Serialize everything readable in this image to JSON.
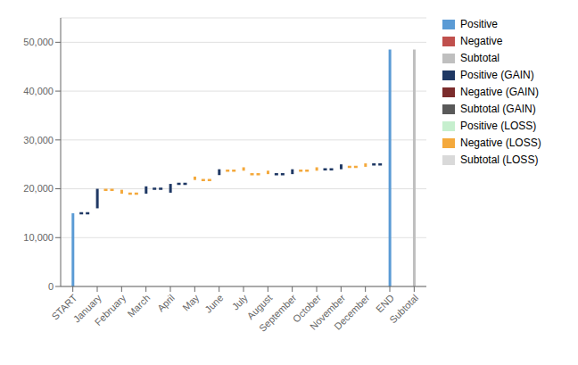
{
  "chart_data": {
    "type": "bar",
    "categories": [
      "START",
      "January",
      "February",
      "March",
      "April",
      "May",
      "June",
      "July",
      "August",
      "September",
      "October",
      "November",
      "December",
      "END",
      "Subtotal"
    ],
    "series": [
      {
        "name": "Positive",
        "color": "#5b9bd5",
        "values": [
          [
            0,
            15000
          ],
          null,
          null,
          null,
          null,
          null,
          null,
          null,
          null,
          null,
          null,
          null,
          null,
          [
            0,
            48500
          ],
          null
        ]
      },
      {
        "name": "Negative",
        "color": "#c0504d",
        "values": [
          null,
          null,
          null,
          null,
          null,
          null,
          null,
          null,
          null,
          null,
          null,
          null,
          null,
          null,
          null
        ]
      },
      {
        "name": "Subtotal",
        "color": "#bfbfbf",
        "values": [
          null,
          null,
          null,
          null,
          null,
          null,
          null,
          null,
          null,
          null,
          null,
          null,
          null,
          null,
          [
            0,
            48500
          ]
        ]
      },
      {
        "name": "Positive (GAIN)",
        "color": "#1f3864",
        "values": [
          null,
          [
            16000,
            20000
          ],
          null,
          [
            19000,
            20500
          ],
          [
            19200,
            21000
          ],
          null,
          [
            22800,
            24000
          ],
          null,
          null,
          [
            23000,
            24000
          ],
          null,
          [
            24000,
            25000
          ],
          null,
          null,
          null
        ]
      },
      {
        "name": "Negative (GAIN)",
        "color": "#7b2c2c",
        "values": [
          null,
          null,
          null,
          null,
          null,
          null,
          null,
          null,
          null,
          null,
          null,
          null,
          null,
          null,
          null
        ]
      },
      {
        "name": "Subtotal (GAIN)",
        "color": "#595959",
        "values": [
          null,
          null,
          null,
          null,
          null,
          null,
          null,
          null,
          null,
          null,
          null,
          null,
          null,
          null,
          null
        ]
      },
      {
        "name": "Positive (LOSS)",
        "color": "#c6efce",
        "values": [
          null,
          null,
          null,
          null,
          null,
          null,
          null,
          null,
          null,
          null,
          null,
          null,
          null,
          null,
          null
        ]
      },
      {
        "name": "Negative (LOSS)",
        "color": "#f4a93c",
        "values": [
          null,
          null,
          [
            19000,
            19800
          ],
          null,
          null,
          [
            21800,
            22500
          ],
          null,
          [
            23700,
            24400
          ],
          [
            23000,
            23700
          ],
          null,
          [
            23700,
            24400
          ],
          null,
          [
            24500,
            25200
          ],
          null,
          null
        ]
      },
      {
        "name": "Subtotal (LOSS)",
        "color": "#d9d9d9",
        "values": [
          null,
          null,
          null,
          null,
          null,
          null,
          null,
          null,
          null,
          null,
          null,
          null,
          null,
          null,
          null
        ]
      }
    ],
    "connectors": [
      {
        "from": "START",
        "to": "January",
        "value": 15000,
        "color": "#1f3864"
      },
      {
        "from": "January",
        "to": "February",
        "value": 19800,
        "color": "#f4a93c"
      },
      {
        "from": "February",
        "to": "March",
        "value": 19000,
        "color": "#f4a93c"
      },
      {
        "from": "March",
        "to": "April",
        "value": 20000,
        "color": "#1f3864"
      },
      {
        "from": "April",
        "to": "May",
        "value": 21000,
        "color": "#1f3864"
      },
      {
        "from": "May",
        "to": "June",
        "value": 21800,
        "color": "#f4a93c"
      },
      {
        "from": "June",
        "to": "July",
        "value": 23700,
        "color": "#f4a93c"
      },
      {
        "from": "July",
        "to": "August",
        "value": 23000,
        "color": "#f4a93c"
      },
      {
        "from": "August",
        "to": "September",
        "value": 23000,
        "color": "#1f3864"
      },
      {
        "from": "September",
        "to": "October",
        "value": 23700,
        "color": "#f4a93c"
      },
      {
        "from": "October",
        "to": "November",
        "value": 24000,
        "color": "#1f3864"
      },
      {
        "from": "November",
        "to": "December",
        "value": 24500,
        "color": "#f4a93c"
      },
      {
        "from": "December",
        "to": "END",
        "value": 25000,
        "color": "#1f3864"
      }
    ],
    "ylim": [
      0,
      55000
    ],
    "yticks": [
      0,
      {
        "value": 10000,
        "label": "10,000"
      },
      {
        "value": 20000,
        "label": "20,000"
      },
      {
        "value": 30000,
        "label": "30,000"
      },
      {
        "value": 40000,
        "label": "40,000"
      },
      {
        "value": 50000,
        "label": "50,000"
      }
    ],
    "grid": true,
    "legend": "right"
  }
}
